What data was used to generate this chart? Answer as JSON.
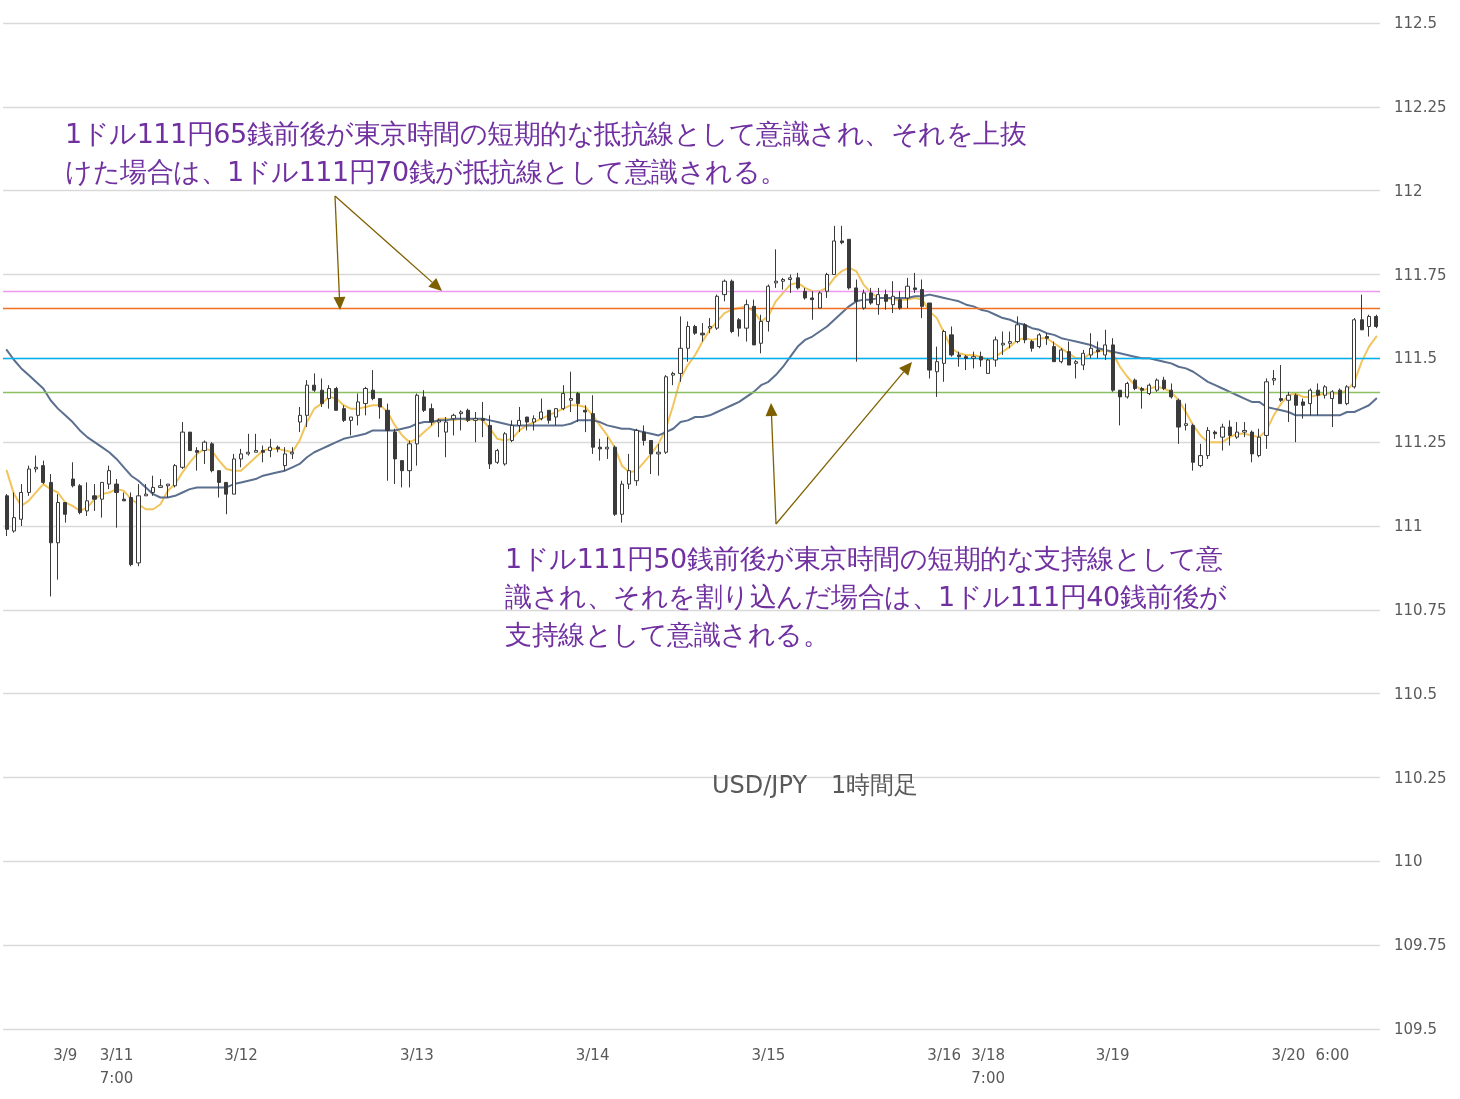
{
  "chart_data": {
    "type": "candlestick",
    "title": "USD/JPY　1時間足",
    "annotations": [
      "1ドル111円65銭前後が東京時間の短期的な抵抗線として意識され、それを上抜けた場合は、1ドル111円70銭が抵抗線として意識される。",
      "1ドル111円50銭前後が東京時間の短期的な支持線として意識され、それを割り込んだ場合は、1ドル111円40銭前後が支持線として意識される。"
    ],
    "categories": [
      null,
      null,
      null,
      null,
      null,
      null,
      null,
      null,
      "3/9",
      null,
      null,
      null,
      null,
      null,
      null,
      "3/11\n7:00",
      null,
      null,
      null,
      null,
      null,
      null,
      null,
      null,
      null,
      null,
      null,
      null,
      null,
      null,
      null,
      null,
      "3/12",
      null,
      null,
      null,
      null,
      null,
      null,
      null,
      null,
      null,
      null,
      null,
      null,
      null,
      null,
      null,
      null,
      null,
      null,
      null,
      null,
      null,
      null,
      null,
      "3/13",
      null,
      null,
      null,
      null,
      null,
      null,
      null,
      null,
      null,
      null,
      null,
      null,
      null,
      null,
      null,
      null,
      null,
      null,
      null,
      null,
      null,
      null,
      null,
      "3/14",
      null,
      null,
      null,
      null,
      null,
      null,
      null,
      null,
      null,
      null,
      null,
      null,
      null,
      null,
      null,
      null,
      null,
      null,
      null,
      null,
      null,
      null,
      null,
      "3/15",
      null,
      null,
      null,
      null,
      null,
      null,
      null,
      null,
      null,
      null,
      null,
      null,
      null,
      null,
      null,
      null,
      null,
      null,
      null,
      null,
      null,
      null,
      null,
      "3/16",
      null,
      null,
      null,
      null,
      null,
      "3/18\n7:00",
      null,
      null,
      null,
      null,
      null,
      null,
      null,
      null,
      null,
      null,
      null,
      null,
      null,
      null,
      null,
      null,
      "3/19",
      null,
      null,
      null,
      null,
      null,
      null,
      null,
      null,
      null,
      null,
      null,
      null,
      null,
      null,
      null,
      null,
      null,
      null,
      null,
      null,
      null,
      null,
      null,
      "3/20",
      null,
      null,
      null,
      null,
      null,
      "6:00",
      null,
      null,
      null,
      null,
      null,
      null
    ],
    "ohlc": [
      [
        111.09,
        111.095,
        110.97,
        110.99
      ],
      [
        110.985,
        111.1,
        110.98,
        111.025
      ],
      [
        111.02,
        111.125,
        111.0,
        111.1
      ],
      [
        111.1,
        111.18,
        111.09,
        111.17
      ],
      [
        111.17,
        111.21,
        111.16,
        111.175
      ],
      [
        111.18,
        111.195,
        111.125,
        111.13
      ],
      [
        111.13,
        111.155,
        110.79,
        110.95
      ],
      [
        110.95,
        111.095,
        110.84,
        111.07
      ],
      [
        111.07,
        111.07,
        111.01,
        111.035
      ],
      [
        111.14,
        111.19,
        111.115,
        111.12
      ],
      [
        111.12,
        111.125,
        111.035,
        111.04
      ],
      [
        111.045,
        111.13,
        111.03,
        111.075
      ],
      [
        111.09,
        111.125,
        111.045,
        111.08
      ],
      [
        111.08,
        111.13,
        111.025,
        111.13
      ],
      [
        111.125,
        111.18,
        111.11,
        111.165
      ],
      [
        111.125,
        111.14,
        110.995,
        111.1
      ],
      [
        111.08,
        111.1,
        111.075,
        111.075
      ],
      [
        111.085,
        111.1,
        110.88,
        110.885
      ],
      [
        110.89,
        111.125,
        110.88,
        111.09
      ],
      [
        111.09,
        111.125,
        111.09,
        111.095
      ],
      [
        111.1,
        111.15,
        111.09,
        111.115
      ],
      [
        111.115,
        111.14,
        111.115,
        111.12
      ],
      [
        111.12,
        111.125,
        111.085,
        111.125
      ],
      [
        111.12,
        111.185,
        111.115,
        111.18
      ],
      [
        111.175,
        111.31,
        111.17,
        111.28
      ],
      [
        111.28,
        111.28,
        111.225,
        111.225
      ],
      [
        111.225,
        111.235,
        111.165,
        111.22
      ],
      [
        111.225,
        111.255,
        111.185,
        111.25
      ],
      [
        111.245,
        111.25,
        111.16,
        111.165
      ],
      [
        111.165,
        111.165,
        111.085,
        111.13
      ],
      [
        111.13,
        111.13,
        111.035,
        111.095
      ],
      [
        111.095,
        111.215,
        111.095,
        111.2
      ],
      [
        111.2,
        111.23,
        111.175,
        111.215
      ],
      [
        111.215,
        111.275,
        111.21,
        111.22
      ],
      [
        111.22,
        111.275,
        111.22,
        111.225
      ],
      [
        111.225,
        111.24,
        111.19,
        111.22
      ],
      [
        111.225,
        111.26,
        111.205,
        111.235
      ],
      [
        111.235,
        111.24,
        111.22,
        111.23
      ],
      [
        111.18,
        111.235,
        111.165,
        111.215
      ],
      [
        111.215,
        111.235,
        111.2,
        111.22
      ],
      [
        111.31,
        111.355,
        111.28,
        111.33
      ],
      [
        111.33,
        111.435,
        111.295,
        111.42
      ],
      [
        111.42,
        111.455,
        111.4,
        111.405
      ],
      [
        111.405,
        111.44,
        111.355,
        111.365
      ],
      [
        111.38,
        111.42,
        111.35,
        111.41
      ],
      [
        111.41,
        111.415,
        111.345,
        111.345
      ],
      [
        111.35,
        111.36,
        111.31,
        111.315
      ],
      [
        111.315,
        111.325,
        111.27,
        111.325
      ],
      [
        111.33,
        111.395,
        111.3,
        111.37
      ],
      [
        111.365,
        111.415,
        111.33,
        111.41
      ],
      [
        111.405,
        111.465,
        111.375,
        111.38
      ],
      [
        111.38,
        111.38,
        111.32,
        111.355
      ],
      [
        111.345,
        111.365,
        111.135,
        111.285
      ],
      [
        111.28,
        111.29,
        111.125,
        111.2
      ],
      [
        111.195,
        111.195,
        111.115,
        111.165
      ],
      [
        111.165,
        111.255,
        111.115,
        111.245
      ],
      [
        111.245,
        111.395,
        111.18,
        111.39
      ],
      [
        111.385,
        111.405,
        111.34,
        111.345
      ],
      [
        111.35,
        111.365,
        111.3,
        111.31
      ],
      [
        111.31,
        111.32,
        111.265,
        111.315
      ],
      [
        111.28,
        111.325,
        111.205,
        111.31
      ],
      [
        111.32,
        111.335,
        111.27,
        111.33
      ],
      [
        111.335,
        111.345,
        111.285,
        111.34
      ],
      [
        111.345,
        111.35,
        111.31,
        111.315
      ],
      [
        111.315,
        111.34,
        111.25,
        111.32
      ],
      [
        111.32,
        111.37,
        111.265,
        111.315
      ],
      [
        111.3,
        111.33,
        111.17,
        111.185
      ],
      [
        111.19,
        111.23,
        111.185,
        111.225
      ],
      [
        111.185,
        111.28,
        111.18,
        111.275
      ],
      [
        111.255,
        111.315,
        111.25,
        111.3
      ],
      [
        111.3,
        111.355,
        111.28,
        111.315
      ],
      [
        111.325,
        111.325,
        111.285,
        111.31
      ],
      [
        111.31,
        111.33,
        111.285,
        111.32
      ],
      [
        111.32,
        111.38,
        111.315,
        111.34
      ],
      [
        111.345,
        111.345,
        111.305,
        111.315
      ],
      [
        111.325,
        111.35,
        111.3,
        111.35
      ],
      [
        111.35,
        111.42,
        111.345,
        111.395
      ],
      [
        111.375,
        111.46,
        111.34,
        111.38
      ],
      [
        111.395,
        111.4,
        111.31,
        111.365
      ],
      [
        111.345,
        111.36,
        111.28,
        111.34
      ],
      [
        111.335,
        111.39,
        111.215,
        111.235
      ],
      [
        111.235,
        111.26,
        111.195,
        111.23
      ],
      [
        111.23,
        111.265,
        111.2,
        111.235
      ],
      [
        111.235,
        111.24,
        111.03,
        111.035
      ],
      [
        111.035,
        111.135,
        111.01,
        111.125
      ],
      [
        111.125,
        111.215,
        111.11,
        111.165
      ],
      [
        111.135,
        111.29,
        111.12,
        111.285
      ],
      [
        111.28,
        111.3,
        111.24,
        111.255
      ],
      [
        111.255,
        111.255,
        111.155,
        111.215
      ],
      [
        111.215,
        111.245,
        111.15,
        111.22
      ],
      [
        111.22,
        111.45,
        111.215,
        111.445
      ],
      [
        111.45,
        111.46,
        111.42,
        111.455
      ],
      [
        111.455,
        111.625,
        111.43,
        111.53
      ],
      [
        111.53,
        111.61,
        111.49,
        111.595
      ],
      [
        111.595,
        111.6,
        111.57,
        111.575
      ],
      [
        111.575,
        111.605,
        111.55,
        111.57
      ],
      [
        111.59,
        111.62,
        111.575,
        111.595
      ],
      [
        111.59,
        111.69,
        111.585,
        111.685
      ],
      [
        111.69,
        111.735,
        111.67,
        111.73
      ],
      [
        111.73,
        111.735,
        111.575,
        111.58
      ],
      [
        111.615,
        111.62,
        111.565,
        111.59
      ],
      [
        111.59,
        111.675,
        111.55,
        111.66
      ],
      [
        111.655,
        111.675,
        111.54,
        111.54
      ],
      [
        111.545,
        111.63,
        111.515,
        111.61
      ],
      [
        111.61,
        111.72,
        111.58,
        111.715
      ],
      [
        111.725,
        111.825,
        111.71,
        111.73
      ],
      [
        111.73,
        111.74,
        111.705,
        111.735
      ],
      [
        111.735,
        111.75,
        111.695,
        111.74
      ],
      [
        111.74,
        111.755,
        111.705,
        111.71
      ],
      [
        111.7,
        111.71,
        111.675,
        111.68
      ],
      [
        111.68,
        111.7,
        111.615,
        111.675
      ],
      [
        111.65,
        111.7,
        111.65,
        111.695
      ],
      [
        111.7,
        111.755,
        111.68,
        111.75
      ],
      [
        111.75,
        111.895,
        111.75,
        111.85
      ],
      [
        111.85,
        111.895,
        111.84,
        111.845
      ],
      [
        111.855,
        111.855,
        111.705,
        111.71
      ],
      [
        111.71,
        111.735,
        111.49,
        111.67
      ],
      [
        111.65,
        111.705,
        111.645,
        111.695
      ],
      [
        111.695,
        111.71,
        111.66,
        111.665
      ],
      [
        111.66,
        111.71,
        111.63,
        111.69
      ],
      [
        111.69,
        111.705,
        111.645,
        111.67
      ],
      [
        111.66,
        111.73,
        111.635,
        111.685
      ],
      [
        111.675,
        111.7,
        111.645,
        111.65
      ],
      [
        111.68,
        111.74,
        111.65,
        111.715
      ],
      [
        111.71,
        111.755,
        111.695,
        111.705
      ],
      [
        111.705,
        111.735,
        111.62,
        111.655
      ],
      [
        111.665,
        111.665,
        111.44,
        111.465
      ],
      [
        111.46,
        111.535,
        111.385,
        111.49
      ],
      [
        111.485,
        111.585,
        111.43,
        111.58
      ],
      [
        111.57,
        111.595,
        111.505,
        111.51
      ],
      [
        111.51,
        111.52,
        111.475,
        111.505
      ],
      [
        111.505,
        111.51,
        111.465,
        111.5
      ],
      [
        111.5,
        111.52,
        111.47,
        111.505
      ],
      [
        111.505,
        111.52,
        111.475,
        111.495
      ],
      [
        111.455,
        111.5,
        111.455,
        111.495
      ],
      [
        111.495,
        111.565,
        111.475,
        111.555
      ],
      [
        111.54,
        111.58,
        111.51,
        111.545
      ],
      [
        111.545,
        111.58,
        111.53,
        111.55
      ],
      [
        111.55,
        111.625,
        111.545,
        111.6
      ],
      [
        111.6,
        111.605,
        111.545,
        111.555
      ],
      [
        111.55,
        111.555,
        111.52,
        111.53
      ],
      [
        111.535,
        111.575,
        111.53,
        111.57
      ],
      [
        111.565,
        111.575,
        111.54,
        111.56
      ],
      [
        111.535,
        111.55,
        111.49,
        111.49
      ],
      [
        111.49,
        111.53,
        111.485,
        111.525
      ],
      [
        111.52,
        111.55,
        111.48,
        111.48
      ],
      [
        111.485,
        111.495,
        111.44,
        111.49
      ],
      [
        111.48,
        111.525,
        111.465,
        111.515
      ],
      [
        111.51,
        111.575,
        111.5,
        111.53
      ],
      [
        111.525,
        111.55,
        111.5,
        111.52
      ],
      [
        111.51,
        111.585,
        111.495,
        111.54
      ],
      [
        111.54,
        111.56,
        111.4,
        111.405
      ],
      [
        111.405,
        111.405,
        111.3,
        111.385
      ],
      [
        111.385,
        111.43,
        111.38,
        111.425
      ],
      [
        111.435,
        111.44,
        111.405,
        111.41
      ],
      [
        111.41,
        111.415,
        111.35,
        111.405
      ],
      [
        111.395,
        111.425,
        111.39,
        111.42
      ],
      [
        111.405,
        111.44,
        111.4,
        111.435
      ],
      [
        111.435,
        111.445,
        111.405,
        111.41
      ],
      [
        111.405,
        111.425,
        111.38,
        111.385
      ],
      [
        111.375,
        111.38,
        111.245,
        111.295
      ],
      [
        111.3,
        111.365,
        111.285,
        111.305
      ],
      [
        111.3,
        111.305,
        111.165,
        111.19
      ],
      [
        111.18,
        111.245,
        111.175,
        111.21
      ],
      [
        111.21,
        111.295,
        111.2,
        111.285
      ],
      [
        111.28,
        111.285,
        111.26,
        111.275
      ],
      [
        111.265,
        111.305,
        111.225,
        111.295
      ],
      [
        111.295,
        111.315,
        111.24,
        111.27
      ],
      [
        111.265,
        111.31,
        111.26,
        111.28
      ],
      [
        111.28,
        111.31,
        111.265,
        111.285
      ],
      [
        111.28,
        111.285,
        111.19,
        111.215
      ],
      [
        111.21,
        111.29,
        111.205,
        111.265
      ],
      [
        111.27,
        111.44,
        111.23,
        111.43
      ],
      [
        111.435,
        111.465,
        111.42,
        111.44
      ],
      [
        111.38,
        111.48,
        111.37,
        111.375
      ],
      [
        111.375,
        111.4,
        111.31,
        111.39
      ],
      [
        111.39,
        111.395,
        111.25,
        111.36
      ],
      [
        111.37,
        111.38,
        111.32,
        111.36
      ],
      [
        111.365,
        111.41,
        111.33,
        111.405
      ],
      [
        111.405,
        111.425,
        111.33,
        111.39
      ],
      [
        111.39,
        111.42,
        111.38,
        111.415
      ],
      [
        111.38,
        111.405,
        111.295,
        111.4
      ],
      [
        111.405,
        111.41,
        111.365,
        111.365
      ],
      [
        111.365,
        111.42,
        111.36,
        111.415
      ],
      [
        111.415,
        111.62,
        111.41,
        111.615
      ],
      [
        111.615,
        111.69,
        111.585,
        111.585
      ],
      [
        111.595,
        111.63,
        111.565,
        111.625
      ],
      [
        111.625,
        111.63,
        111.59,
        111.595
      ]
    ],
    "series": [
      {
        "type": "line",
        "color": "#f2c55c",
        "values": [
          111.165,
          111.095,
          111.06,
          111.075,
          111.1,
          111.125,
          111.11,
          111.1,
          111.07,
          111.06,
          111.045,
          111.055,
          111.08,
          111.095,
          111.1,
          111.11,
          111.105,
          111.08,
          111.065,
          111.05,
          111.05,
          111.065,
          111.105,
          111.125,
          111.16,
          111.19,
          111.215,
          111.23,
          111.225,
          111.195,
          111.17,
          111.165,
          111.165,
          111.185,
          111.205,
          111.225,
          111.23,
          111.23,
          111.225,
          111.22,
          111.255,
          111.31,
          111.35,
          111.365,
          111.385,
          111.38,
          111.36,
          111.35,
          111.35,
          111.355,
          111.36,
          111.36,
          111.34,
          111.3,
          111.27,
          111.25,
          111.26,
          111.28,
          111.3,
          111.32,
          111.32,
          111.315,
          111.32,
          111.315,
          111.32,
          111.315,
          111.29,
          111.26,
          111.255,
          111.26,
          111.285,
          111.3,
          111.31,
          111.32,
          111.33,
          111.34,
          111.35,
          111.36,
          111.36,
          111.355,
          111.33,
          111.3,
          111.27,
          111.235,
          111.18,
          111.16,
          111.165,
          111.19,
          111.215,
          111.245,
          111.29,
          111.36,
          111.44,
          111.48,
          111.51,
          111.55,
          111.585,
          111.61,
          111.635,
          111.645,
          111.65,
          111.655,
          111.64,
          111.61,
          111.625,
          111.67,
          111.695,
          111.72,
          111.725,
          111.71,
          111.7,
          111.7,
          111.71,
          111.74,
          111.76,
          111.77,
          111.76,
          111.72,
          111.695,
          111.68,
          111.68,
          111.675,
          111.675,
          111.675,
          111.68,
          111.675,
          111.64,
          111.62,
          111.575,
          111.53,
          111.515,
          111.51,
          111.51,
          111.505,
          111.495,
          111.505,
          111.52,
          111.535,
          111.555,
          111.56,
          111.555,
          111.56,
          111.56,
          111.545,
          111.53,
          111.515,
          111.5,
          111.5,
          111.515,
          111.52,
          111.525,
          111.515,
          111.475,
          111.445,
          111.42,
          111.405,
          111.41,
          111.415,
          111.41,
          111.4,
          111.375,
          111.34,
          111.3,
          111.27,
          111.25,
          111.25,
          111.25,
          111.265,
          111.275,
          111.275,
          111.27,
          111.265,
          111.285,
          111.33,
          111.365,
          111.39,
          111.395,
          111.385,
          111.385,
          111.39,
          111.395,
          111.395,
          111.395,
          111.405,
          111.43,
          111.49,
          111.535,
          111.565
        ]
      },
      {
        "type": "line",
        "color": "#5b6f8e",
        "values": [
          111.525,
          111.495,
          111.47,
          111.45,
          111.43,
          111.41,
          111.375,
          111.35,
          111.33,
          111.31,
          111.285,
          111.265,
          111.25,
          111.235,
          111.22,
          111.2,
          111.175,
          111.15,
          111.135,
          111.115,
          111.095,
          111.085,
          111.085,
          111.09,
          111.1,
          111.11,
          111.115,
          111.115,
          111.115,
          111.115,
          111.115,
          111.125,
          111.13,
          111.135,
          111.14,
          111.15,
          111.155,
          111.16,
          111.165,
          111.175,
          111.185,
          111.205,
          111.22,
          111.23,
          111.24,
          111.25,
          111.26,
          111.265,
          111.27,
          111.275,
          111.285,
          111.285,
          111.285,
          111.285,
          111.29,
          111.295,
          111.305,
          111.31,
          111.31,
          111.315,
          111.315,
          111.32,
          111.32,
          111.32,
          111.32,
          111.32,
          111.315,
          111.31,
          111.305,
          111.3,
          111.3,
          111.3,
          111.3,
          111.3,
          111.3,
          111.3,
          111.3,
          111.305,
          111.315,
          111.315,
          111.315,
          111.31,
          111.3,
          111.295,
          111.29,
          111.29,
          111.285,
          111.28,
          111.275,
          111.27,
          111.28,
          111.29,
          111.31,
          111.315,
          111.325,
          111.325,
          111.33,
          111.34,
          111.35,
          111.36,
          111.37,
          111.385,
          111.4,
          111.42,
          111.43,
          111.45,
          111.475,
          111.505,
          111.535,
          111.555,
          111.565,
          111.58,
          111.595,
          111.615,
          111.635,
          111.655,
          111.67,
          111.675,
          111.675,
          111.68,
          111.68,
          111.68,
          111.68,
          111.68,
          111.685,
          111.685,
          111.69,
          111.685,
          111.68,
          111.675,
          111.67,
          111.66,
          111.655,
          111.645,
          111.64,
          111.63,
          111.62,
          111.615,
          111.605,
          111.6,
          111.59,
          111.585,
          111.575,
          111.57,
          111.56,
          111.555,
          111.55,
          111.545,
          111.54,
          111.53,
          111.525,
          111.52,
          111.515,
          111.51,
          111.505,
          111.5,
          111.5,
          111.495,
          111.49,
          111.485,
          111.475,
          111.47,
          111.46,
          111.445,
          111.43,
          111.42,
          111.41,
          111.4,
          111.39,
          111.38,
          111.37,
          111.37,
          111.355,
          111.35,
          111.345,
          111.34,
          111.33,
          111.33,
          111.33,
          111.33,
          111.33,
          111.33,
          111.33,
          111.34,
          111.34,
          111.35,
          111.36,
          111.38
        ]
      }
    ],
    "ref_lines": [
      {
        "axis": "y",
        "value": 111.7,
        "color": "#ee99ee"
      },
      {
        "axis": "y",
        "value": 111.65,
        "color": "#f07020"
      },
      {
        "axis": "y",
        "value": 111.5,
        "color": "#00b0f0"
      },
      {
        "axis": "y",
        "value": 111.4,
        "color": "#8cc063"
      }
    ],
    "ylim": [
      109.5,
      112.5
    ],
    "yticks": [
      109.5,
      109.75,
      110,
      110.25,
      110.5,
      110.75,
      111,
      111.25,
      111.5,
      111.75,
      112,
      112.25,
      112.5
    ],
    "grid": "y",
    "marker": "none"
  }
}
